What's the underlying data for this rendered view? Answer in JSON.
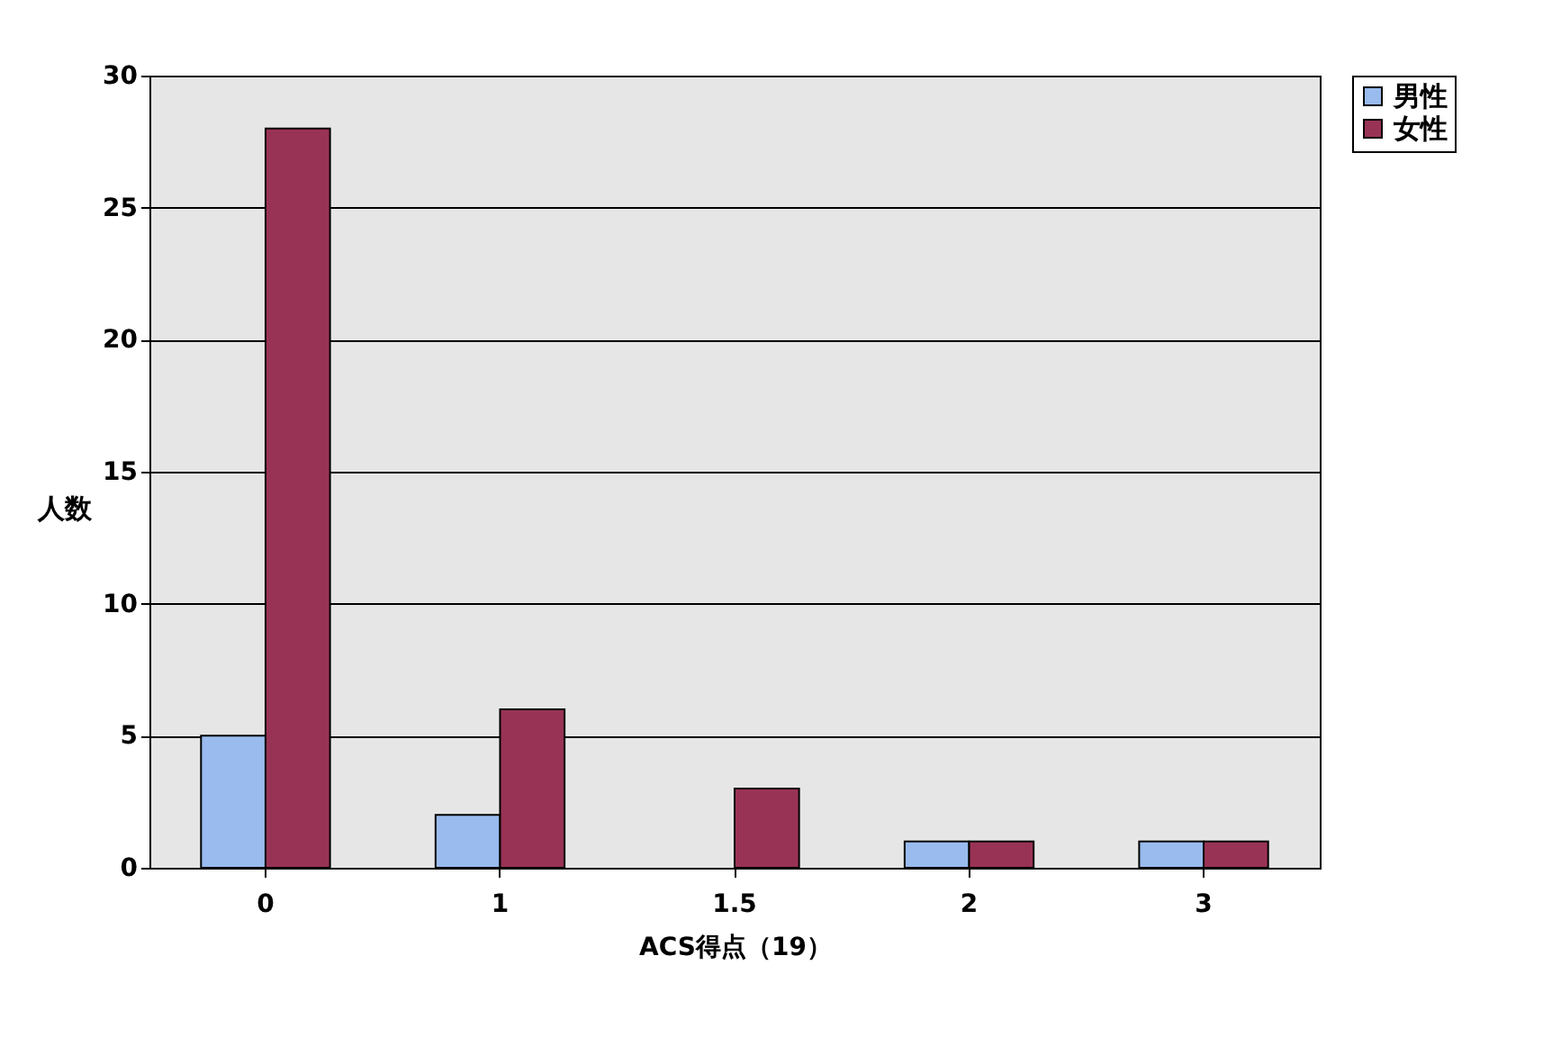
{
  "chart_data": {
    "type": "bar",
    "xlabel": "ACS得点（19）",
    "ylabel": "人数",
    "categories": [
      "0",
      "1",
      "1.5",
      "2",
      "3"
    ],
    "series": [
      {
        "name": "男性",
        "color": "#99bbee",
        "values": [
          5,
          2,
          null,
          1,
          1
        ]
      },
      {
        "name": "女性",
        "color": "#993355",
        "values": [
          28,
          6,
          3,
          1,
          1
        ]
      }
    ],
    "ylim": [
      0,
      30
    ],
    "yticks": [
      0,
      5,
      10,
      15,
      20,
      25,
      30
    ],
    "grid": "y",
    "legend": "right"
  }
}
